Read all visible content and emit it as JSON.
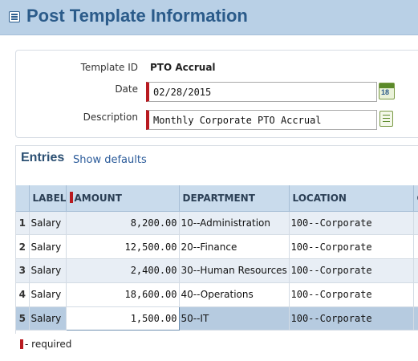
{
  "header": {
    "title": "Post Template Information",
    "menu_icon": "list-icon"
  },
  "form": {
    "template_id_label": "Template ID",
    "template_id_value": "PTO Accrual",
    "date_label": "Date",
    "date_value": "02/28/2015",
    "date_icon": "calendar-icon",
    "calendar_icon_text": "18",
    "description_label": "Description",
    "description_value": "Monthly Corporate PTO Accrual",
    "description_icon": "notes-icon"
  },
  "entries": {
    "title": "Entries",
    "show_defaults_label": "Show defaults",
    "columns": [
      "LABEL",
      "AMOUNT",
      "DEPARTMENT",
      "LOCATION",
      "C"
    ],
    "rows": [
      {
        "num": "1",
        "label": "Salary",
        "amount": "8,200.00",
        "department": "10--Administration",
        "location": "100--Corporate"
      },
      {
        "num": "2",
        "label": "Salary",
        "amount": "12,500.00",
        "department": "20--Finance",
        "location": "100--Corporate"
      },
      {
        "num": "3",
        "label": "Salary",
        "amount": "2,400.00",
        "department": "30--Human Resources",
        "location": "100--Corporate"
      },
      {
        "num": "4",
        "label": "Salary",
        "amount": "18,600.00",
        "department": "40--Operations",
        "location": "100--Corporate"
      },
      {
        "num": "5",
        "label": "Salary",
        "amount": "1,500.00",
        "department": "50--IT",
        "location": "100--Corporate"
      }
    ]
  },
  "legend": {
    "required_text": "- required"
  },
  "colors": {
    "header_bg": "#b9d0e6",
    "title_color": "#2b5b8a",
    "required_marker": "#b81a20",
    "selected_row": "#b6cbe0"
  }
}
